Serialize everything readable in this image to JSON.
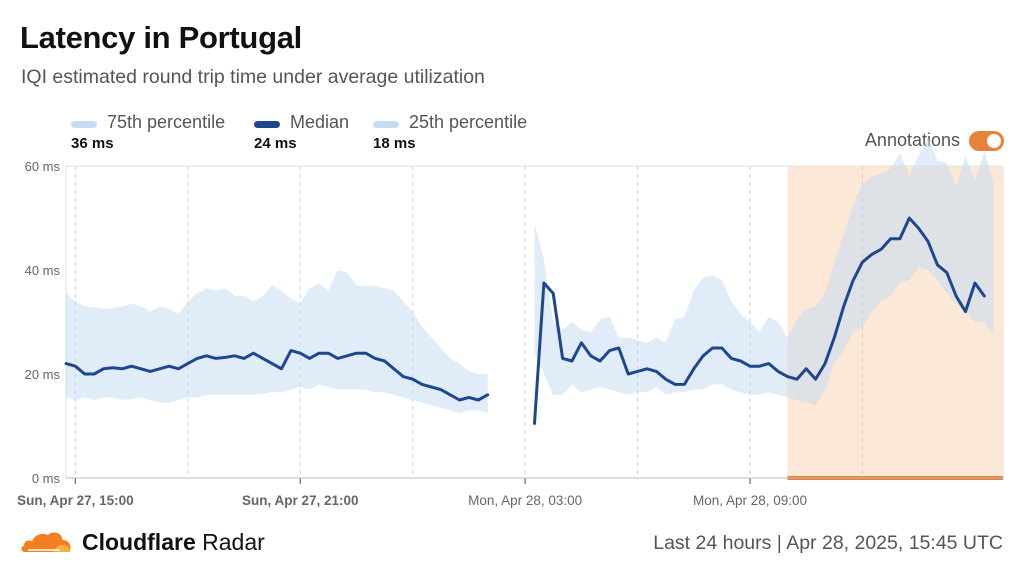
{
  "header": {
    "title": "Latency in Portugal",
    "subtitle": "IQI estimated round trip time under average utilization"
  },
  "legend": [
    {
      "label": "75th percentile",
      "value": "36 ms",
      "color": "#c6dcf2"
    },
    {
      "label": "Median",
      "value": "24 ms",
      "color": "#1f4790"
    },
    {
      "label": "25th percentile",
      "value": "18 ms",
      "color": "#c6dcf2"
    }
  ],
  "annotations": {
    "label": "Annotations",
    "enabled": true,
    "color": "#e8823a"
  },
  "footer": {
    "brand_bold": "Cloudflare",
    "brand_rest": " Radar",
    "period": "Last 24 hours | Apr 28, 2025, 15:45 UTC"
  },
  "chart_data": {
    "type": "area",
    "x_start": "2025-04-27T14:45:00Z",
    "x_end": "2025-04-28T15:45:00Z",
    "interval_minutes": 15,
    "ylim": [
      0,
      60
    ],
    "yticks": [
      0,
      20,
      40,
      60
    ],
    "ytick_labels": [
      "0 ms",
      "20 ms",
      "40 ms",
      "60 ms"
    ],
    "xtick_labels": [
      {
        "label": "Sun, Apr 27, 15:00",
        "at": "2025-04-27T15:00:00Z",
        "bold": true
      },
      {
        "label": "Sun, Apr 27, 21:00",
        "at": "2025-04-27T21:00:00Z",
        "bold": true
      },
      {
        "label": "Mon, Apr 28, 03:00",
        "at": "2025-04-28T03:00:00Z",
        "bold": false
      },
      {
        "label": "Mon, Apr 28, 09:00",
        "at": "2025-04-28T09:00:00Z",
        "bold": false
      }
    ],
    "gridlines_x": [
      "2025-04-27T15:00:00Z",
      "2025-04-27T18:00:00Z",
      "2025-04-27T21:00:00Z",
      "2025-04-28T00:00:00Z",
      "2025-04-28T03:00:00Z",
      "2025-04-28T06:00:00Z",
      "2025-04-28T09:00:00Z",
      "2025-04-28T12:00:00Z"
    ],
    "annotation_range": [
      "2025-04-28T10:00:00Z",
      "2025-04-28T15:45:00Z"
    ],
    "series": [
      {
        "name": "75th percentile",
        "values": [
          35.5,
          34,
          33,
          32.8,
          32.6,
          32.6,
          33,
          33.5,
          33,
          32,
          33,
          32.5,
          31.5,
          34,
          35.5,
          36.5,
          36,
          36.5,
          35,
          35,
          34,
          35,
          37,
          36,
          34.5,
          33.5,
          36.5,
          37.5,
          36,
          40,
          39.5,
          37,
          37,
          37,
          36.5,
          36,
          34,
          32,
          29,
          27,
          25,
          23,
          22,
          20.5,
          20,
          20,
          null,
          null,
          null,
          null,
          49,
          42,
          30,
          28.5,
          30,
          28.5,
          28,
          30.5,
          31,
          27,
          27,
          26.5,
          26,
          27,
          26,
          30.5,
          31,
          36,
          38.5,
          39,
          38,
          34,
          31.5,
          30,
          28,
          31,
          30,
          27,
          30.5,
          32.5,
          33,
          35.5,
          41.5,
          47,
          52.5,
          56.5,
          58,
          58.5,
          59.5,
          62.5,
          58,
          62,
          65.5,
          61,
          60.5,
          56,
          62,
          57,
          63,
          57
        ]
      },
      {
        "name": "Median",
        "values": [
          22,
          21.5,
          20,
          20,
          21,
          21.2,
          21,
          21.5,
          21,
          20.5,
          21,
          21.5,
          21,
          22,
          23,
          23.5,
          23,
          23.2,
          23.5,
          23,
          24,
          23,
          22,
          21,
          24.5,
          24,
          23,
          24,
          24,
          23,
          23.5,
          24,
          24,
          23,
          22.5,
          21,
          19.5,
          19,
          18,
          17.5,
          17,
          16,
          15,
          15.5,
          15,
          16,
          null,
          null,
          null,
          null,
          10.5,
          37.5,
          35.5,
          23,
          22.5,
          26,
          23.5,
          22.5,
          24.5,
          25,
          20,
          20.5,
          21,
          20.5,
          19,
          18,
          18,
          21,
          23.5,
          25,
          25,
          23,
          22.5,
          21.5,
          21.5,
          22,
          20.5,
          19.5,
          19,
          21,
          19,
          22,
          27,
          33,
          38,
          41.5,
          43,
          44,
          46,
          46,
          50,
          48,
          45.5,
          41,
          39.5,
          35,
          32,
          37.5,
          35
        ]
      },
      {
        "name": "25th percentile",
        "values": [
          15.5,
          15,
          15.5,
          15,
          15.5,
          15.5,
          15,
          15.2,
          15.5,
          15,
          14.5,
          14.5,
          15,
          15.5,
          15.5,
          16,
          16,
          16,
          16,
          16,
          16,
          16.2,
          16.5,
          16.5,
          17,
          17.5,
          17,
          18,
          17.5,
          17,
          17,
          17,
          17,
          16.5,
          16.5,
          16,
          15.5,
          15,
          14.5,
          14,
          13.5,
          13,
          12.5,
          13,
          13,
          12.5,
          null,
          null,
          null,
          null,
          24,
          20,
          16,
          16,
          18,
          16.5,
          17,
          17.5,
          17,
          16.5,
          16,
          16.5,
          16.5,
          17.5,
          16,
          16.5,
          16.5,
          17,
          17,
          18,
          18,
          17,
          16.5,
          16,
          16,
          16.5,
          16,
          15.5,
          15,
          14.5,
          14,
          17,
          22,
          24.5,
          28,
          29,
          32,
          34,
          35,
          37.5,
          38,
          40.5,
          40,
          38,
          35.5,
          33.5,
          32,
          30,
          30,
          27.5
        ]
      }
    ]
  }
}
